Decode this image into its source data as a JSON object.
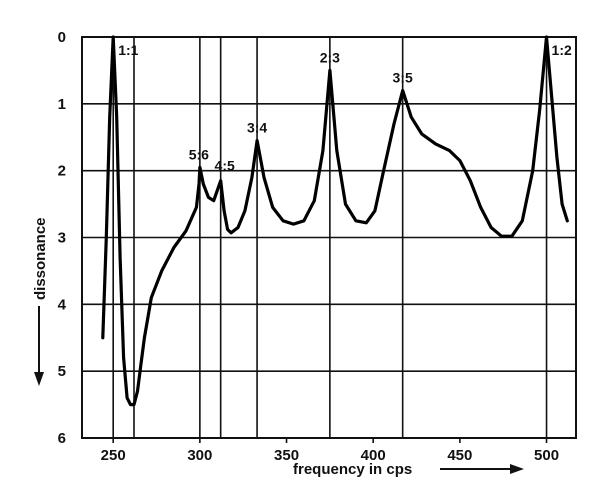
{
  "chart_data": {
    "type": "line",
    "title": "",
    "xlabel": "frequency in cps",
    "ylabel": "dissonance",
    "xlim": [
      232,
      517
    ],
    "ylim": [
      0,
      6
    ],
    "y_inverted": true,
    "grid": true,
    "x_ticks": [
      {
        "value": 250,
        "label": "250"
      },
      {
        "value": 300,
        "label": "300"
      },
      {
        "value": 350,
        "label": "350"
      },
      {
        "value": 400,
        "label": "400"
      },
      {
        "value": 450,
        "label": "450"
      },
      {
        "value": 500,
        "label": "500"
      }
    ],
    "y_ticks": [
      {
        "value": 0,
        "label": "0"
      },
      {
        "value": 1,
        "label": "1"
      },
      {
        "value": 2,
        "label": "2"
      },
      {
        "value": 3,
        "label": "3"
      },
      {
        "value": 4,
        "label": "4"
      },
      {
        "value": 5,
        "label": "5"
      },
      {
        "value": 6,
        "label": "6"
      }
    ],
    "vertical_lines": [
      250,
      262,
      300,
      312,
      333,
      375,
      417,
      500
    ],
    "annotations": [
      {
        "text": "1:1",
        "x": 250,
        "y": 0.0
      },
      {
        "text": "5:6",
        "x": 300,
        "y": 1.95
      },
      {
        "text": "4:5",
        "x": 312,
        "y": 2.15
      },
      {
        "text": "3:4",
        "x": 333,
        "y": 1.55
      },
      {
        "text": "2:3",
        "x": 375,
        "y": 0.5
      },
      {
        "text": "3:5",
        "x": 417,
        "y": 0.8
      },
      {
        "text": "1:2",
        "x": 500,
        "y": 0.0
      }
    ],
    "series": [
      {
        "points": [
          [
            244,
            4.5
          ],
          [
            246,
            3.0
          ],
          [
            248,
            1.2
          ],
          [
            250,
            0.0
          ],
          [
            252,
            1.2
          ],
          [
            254,
            3.3
          ],
          [
            256,
            4.8
          ],
          [
            258,
            5.4
          ],
          [
            260,
            5.5
          ],
          [
            262,
            5.5
          ],
          [
            264,
            5.3
          ],
          [
            266,
            4.9
          ],
          [
            268,
            4.5
          ],
          [
            272,
            3.9
          ],
          [
            278,
            3.5
          ],
          [
            285,
            3.15
          ],
          [
            292,
            2.9
          ],
          [
            298,
            2.55
          ],
          [
            299.5,
            2.2
          ],
          [
            300,
            1.95
          ],
          [
            302,
            2.2
          ],
          [
            305,
            2.4
          ],
          [
            308,
            2.45
          ],
          [
            310,
            2.3
          ],
          [
            312,
            2.15
          ],
          [
            314,
            2.6
          ],
          [
            316,
            2.88
          ],
          [
            318,
            2.93
          ],
          [
            322,
            2.85
          ],
          [
            326,
            2.6
          ],
          [
            330,
            2.1
          ],
          [
            333,
            1.55
          ],
          [
            337,
            2.1
          ],
          [
            342,
            2.55
          ],
          [
            348,
            2.75
          ],
          [
            354,
            2.8
          ],
          [
            360,
            2.75
          ],
          [
            366,
            2.45
          ],
          [
            371,
            1.7
          ],
          [
            375,
            0.5
          ],
          [
            379,
            1.7
          ],
          [
            384,
            2.5
          ],
          [
            390,
            2.75
          ],
          [
            396,
            2.78
          ],
          [
            401,
            2.6
          ],
          [
            406,
            2.0
          ],
          [
            412,
            1.3
          ],
          [
            417,
            0.8
          ],
          [
            422,
            1.2
          ],
          [
            428,
            1.45
          ],
          [
            436,
            1.6
          ],
          [
            444,
            1.7
          ],
          [
            450,
            1.85
          ],
          [
            456,
            2.15
          ],
          [
            462,
            2.55
          ],
          [
            468,
            2.85
          ],
          [
            474,
            2.98
          ],
          [
            480,
            2.98
          ],
          [
            486,
            2.75
          ],
          [
            492,
            2.0
          ],
          [
            496,
            1.1
          ],
          [
            500,
            0.0
          ],
          [
            503,
            0.9
          ],
          [
            506,
            1.8
          ],
          [
            509,
            2.5
          ],
          [
            512,
            2.75
          ]
        ]
      }
    ]
  }
}
